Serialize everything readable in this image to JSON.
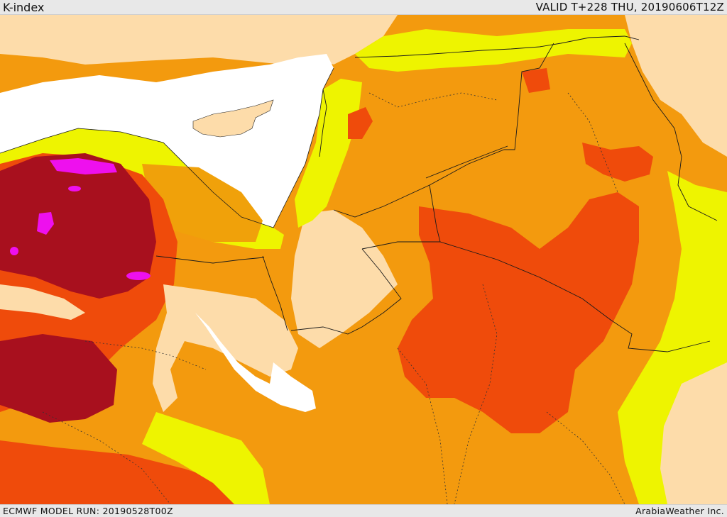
{
  "header": {
    "title": "K-index",
    "valid": "VALID T+228 THU, 20190606T12Z"
  },
  "footer": {
    "model_run": "ECMWF MODEL RUN: 20190528T00Z",
    "credit": "ArabiaWeather Inc."
  },
  "legend_colors": {
    "sea": "#ffffff",
    "land_low": "#fddcaa",
    "yellow": "#eef400",
    "light_orange": "#f0a10a",
    "orange": "#f39a0e",
    "red_orange": "#ef4b0b",
    "dark_red": "#a8101e",
    "magenta": "#ee10ee"
  },
  "map": {
    "variable": "K-index",
    "region": "Eastern Mediterranean and Middle East"
  }
}
